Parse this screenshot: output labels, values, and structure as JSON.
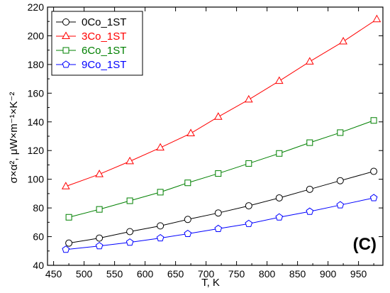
{
  "chart_data": {
    "type": "line",
    "xlabel": "T, K",
    "ylabel": "σ×α², μW×m⁻¹×K⁻²",
    "panel_label": "(C)",
    "xlim": [
      440,
      990
    ],
    "ylim": [
      40,
      220
    ],
    "x_ticks": [
      "450",
      "500",
      "550",
      "600",
      "650",
      "700",
      "750",
      "800",
      "850",
      "900",
      "950"
    ],
    "y_ticks": [
      "40",
      "60",
      "80",
      "100",
      "120",
      "140",
      "160",
      "180",
      "200",
      "220"
    ],
    "grid": false,
    "legend_position": "top-left",
    "series": [
      {
        "name": "0Co_1ST",
        "color": "#000000",
        "marker": "circle",
        "x": [
          475,
          525,
          575,
          625,
          670,
          720,
          770,
          820,
          870,
          920,
          975
        ],
        "y": [
          55.5,
          59,
          63.5,
          67.5,
          72,
          76.5,
          81.5,
          87,
          93,
          99,
          105.5
        ]
      },
      {
        "name": "3Co_1ST",
        "color": "#ff0000",
        "marker": "triangle",
        "x": [
          470,
          525,
          575,
          625,
          675,
          720,
          770,
          820,
          870,
          925,
          980
        ],
        "y": [
          95,
          103.5,
          112.5,
          122,
          132,
          143.5,
          155.5,
          168.5,
          182,
          196,
          211.5
        ]
      },
      {
        "name": "6Co_1ST",
        "color": "#008000",
        "marker": "square",
        "x": [
          475,
          525,
          575,
          625,
          670,
          720,
          770,
          820,
          870,
          920,
          975
        ],
        "y": [
          73.5,
          79,
          85,
          91,
          97.5,
          104,
          111,
          118,
          125.5,
          132.5,
          141
        ]
      },
      {
        "name": "9Co_1ST",
        "color": "#0000ff",
        "marker": "pentagon",
        "x": [
          470,
          525,
          575,
          625,
          670,
          720,
          770,
          820,
          870,
          920,
          975
        ],
        "y": [
          51,
          53.5,
          56,
          59,
          62,
          65.5,
          69,
          73.5,
          77.5,
          82,
          87
        ]
      }
    ]
  }
}
